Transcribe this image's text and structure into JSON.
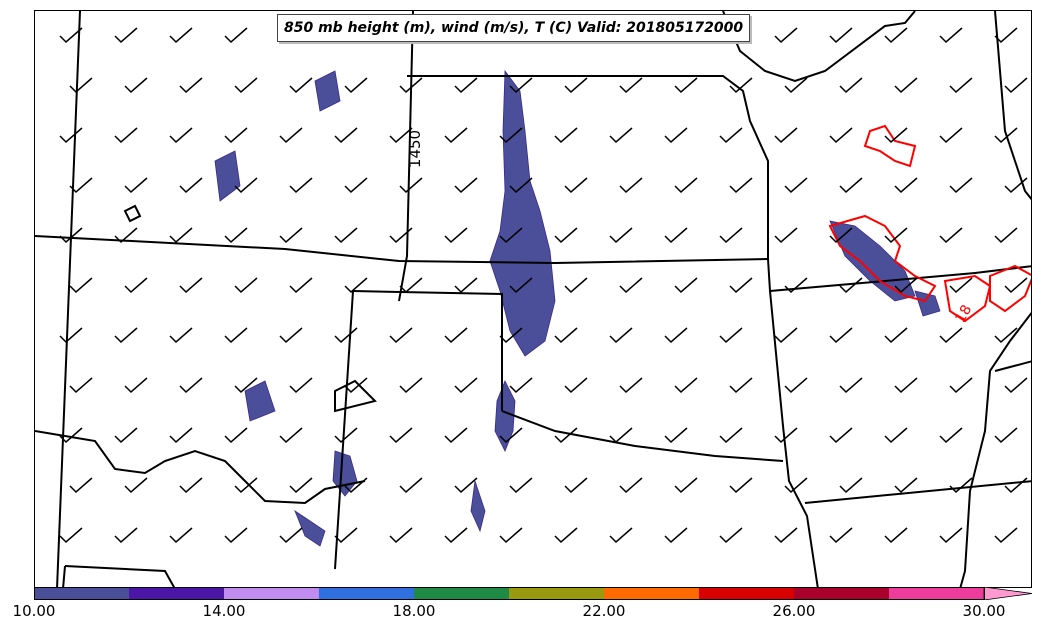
{
  "title": "850 mb height (m), wind (m/s), T (C) Valid: 201805172000",
  "colorbar": {
    "ticks": [
      "10.00",
      "14.00",
      "18.00",
      "22.00",
      "26.00",
      "30.00"
    ],
    "colors": [
      "#4b4f9a",
      "#4b16a5",
      "#c08cf0",
      "#2f6fe0",
      "#1f8a45",
      "#9a9a10",
      "#ff6a00",
      "#d80000",
      "#a8002a",
      "#ee3c9c",
      "#ff9ad0"
    ]
  },
  "contour_labels": [
    "1450"
  ],
  "temperature_label": "18",
  "colors": {
    "boundary": "#000000",
    "shading_main": "#4b4f9a",
    "temperature_contour": "#ff0000"
  }
}
